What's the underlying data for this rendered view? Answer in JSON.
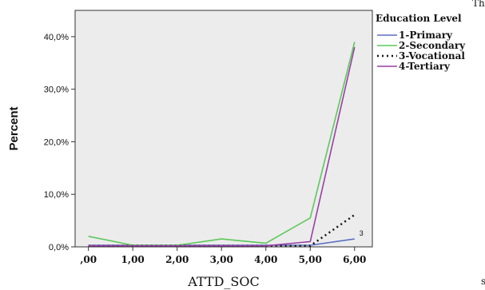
{
  "chart_data": {
    "type": "line",
    "xlabel": "ATTD_SOC",
    "ylabel": "Percent",
    "x": [
      0,
      1,
      2,
      3,
      4,
      5,
      6
    ],
    "x_tick_labels": [
      ",00",
      "1,00",
      "2,00",
      "3,00",
      "4,00",
      "5,00",
      "6,00"
    ],
    "xlim": [
      -0.3,
      6.4
    ],
    "ylim": [
      0,
      45
    ],
    "y_ticks": [
      0,
      10,
      20,
      30,
      40
    ],
    "y_tick_labels": [
      "0,0%",
      "10,0%",
      "20,0%",
      "30,0%",
      "40,0%"
    ],
    "legend": {
      "title": "Education Level",
      "placement": "top-right"
    },
    "series": [
      {
        "name": "1-Primary",
        "color": "#5b6fc4",
        "dash": "solid",
        "values": [
          0.3,
          0.3,
          0.3,
          0.3,
          0.3,
          0.3,
          1.5
        ]
      },
      {
        "name": "2-Secondary",
        "color": "#5cc85a",
        "dash": "solid",
        "values": [
          2.0,
          0.3,
          0.3,
          1.5,
          0.7,
          5.5,
          39.0
        ]
      },
      {
        "name": "3-Vocational",
        "color": "#111111",
        "dash": "dotted",
        "values": [
          0.2,
          0.2,
          0.2,
          0.2,
          0.2,
          0.2,
          6.1
        ]
      },
      {
        "name": "4-Tertiary",
        "color": "#9b3fa6",
        "dash": "solid",
        "values": [
          0.2,
          0.2,
          0.2,
          0.2,
          0.2,
          1.0,
          38.0
        ]
      }
    ],
    "annotations": [
      {
        "text": "3",
        "x": 6,
        "y": 1.5
      }
    ],
    "grid": false,
    "plot_background": "#ececec"
  },
  "edge_fragments": {
    "top_right": "Th",
    "bottom_right": "s"
  }
}
